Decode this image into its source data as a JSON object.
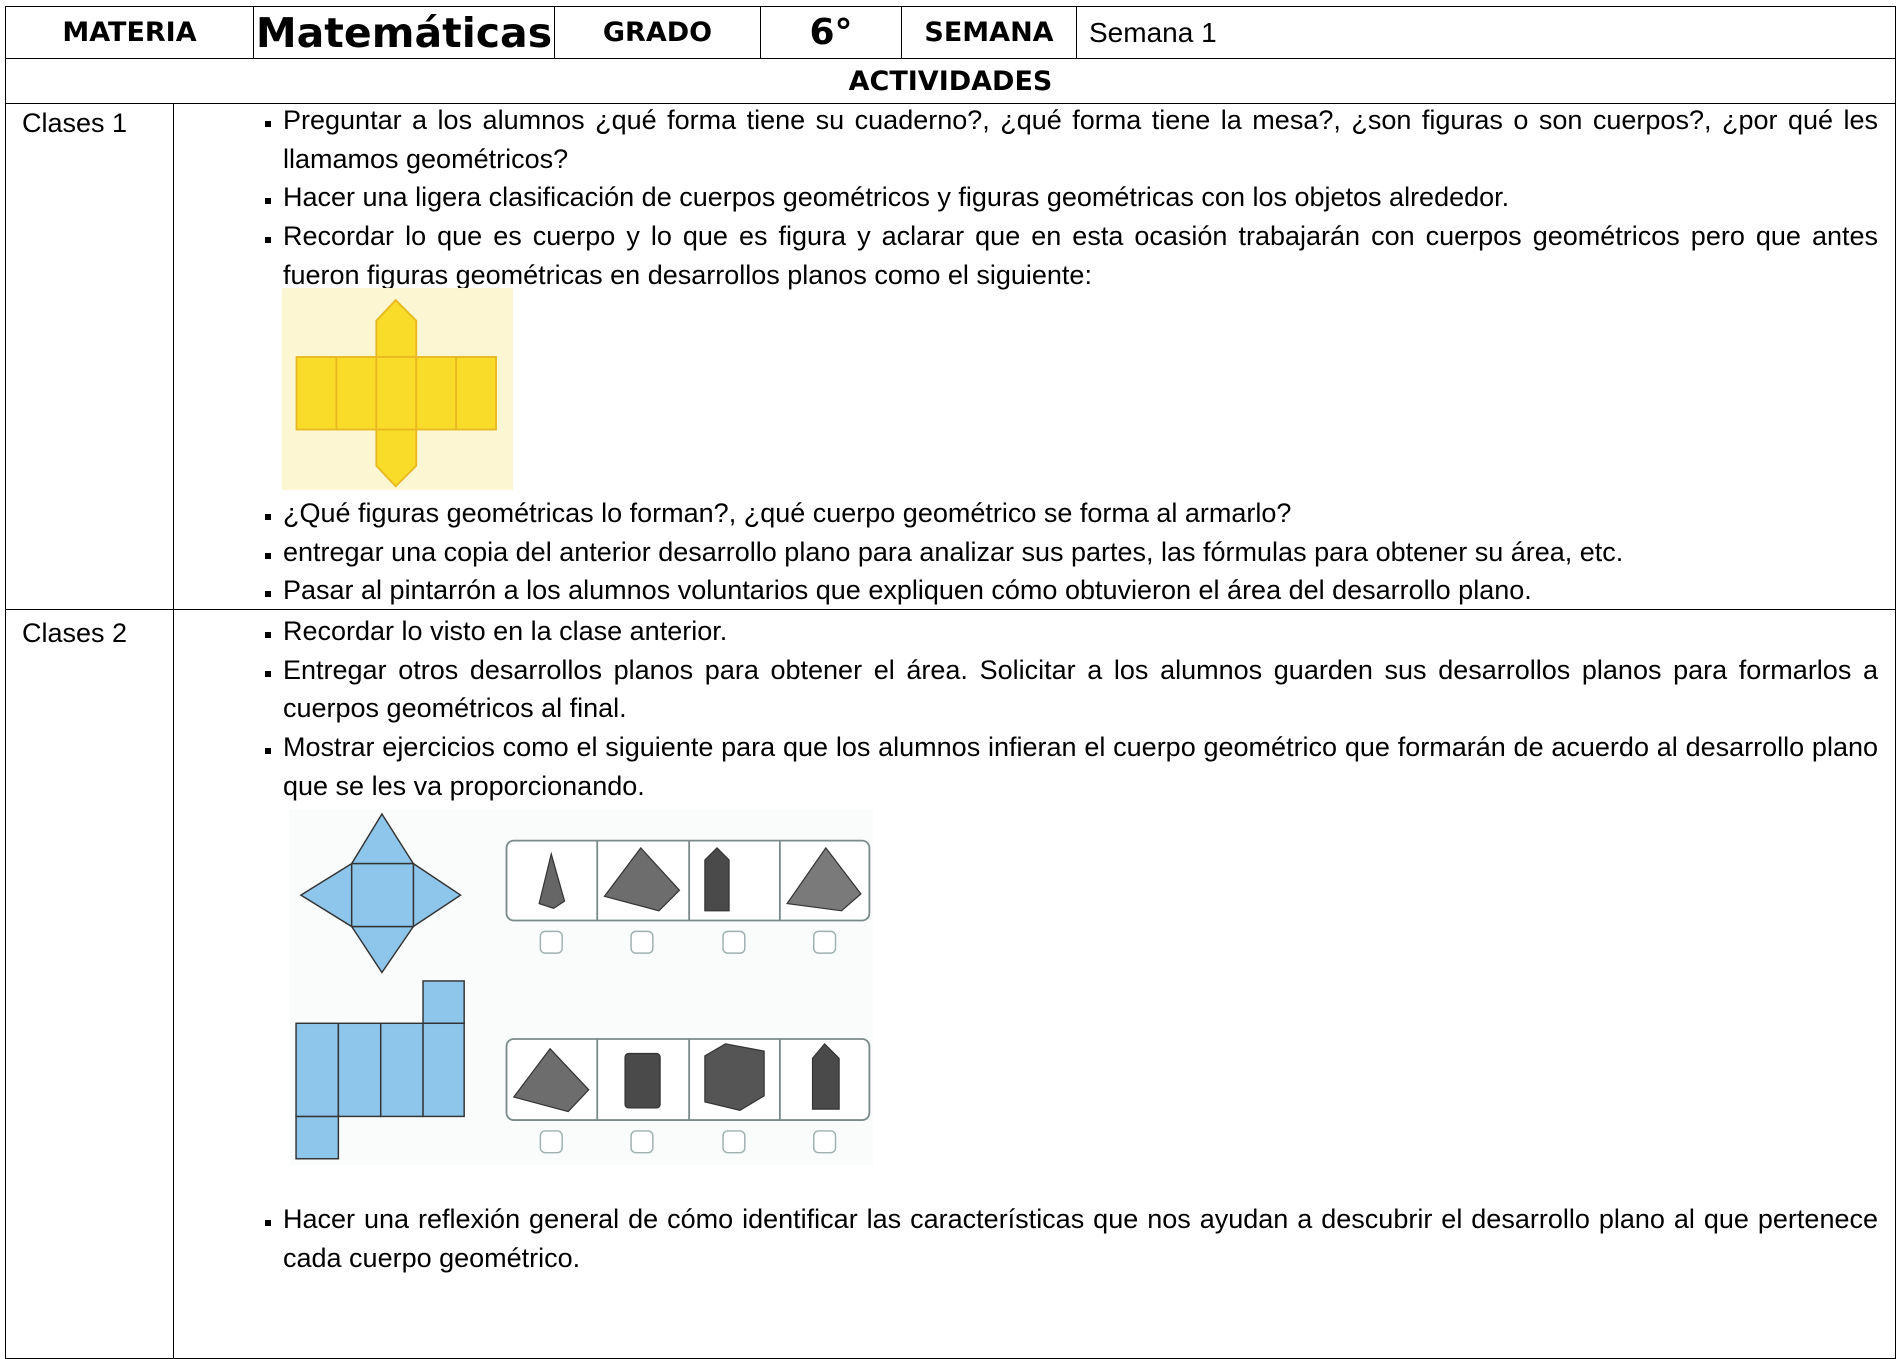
{
  "header": {
    "materia_label": "MATERIA",
    "materia": "Matemáticas",
    "grado_label": "GRADO",
    "grado": "6°",
    "semana_label": "SEMANA",
    "semana": "Semana 1"
  },
  "actividades_title": "ACTIVIDADES",
  "sections": [
    {
      "label": "Clases 1",
      "items_before": [
        "Preguntar a los alumnos ¿qué forma tiene su cuaderno?, ¿qué forma tiene la mesa?, ¿son figuras o son cuerpos?, ¿por qué les llamamos geométricos?",
        "Hacer una ligera clasificación de cuerpos geométricos y figuras geométricas con los objetos alrededor.",
        "Recordar lo que es cuerpo y lo que es figura y aclarar que en esta ocasión trabajarán con cuerpos geométricos pero que antes fueron figuras geométricas en desarrollos planos como el siguiente:"
      ],
      "items_after": [
        "¿Qué figuras geométricas lo forman?, ¿qué cuerpo geométrico se forma al armarlo?",
        "entregar una copia del anterior desarrollo plano para analizar sus partes, las fórmulas para obtener su área, etc.",
        "Pasar al pintarrón a los alumnos voluntarios que expliquen cómo obtuvieron el área del desarrollo plano."
      ]
    },
    {
      "label": "Clases 2",
      "items_before": [
        "Recordar lo visto en la clase anterior.",
        "Entregar otros desarrollos planos para obtener el área. Solicitar a los alumnos guarden sus desarrollos planos para formarlos a cuerpos geométricos al final.",
        "Mostrar ejercicios como el siguiente para que los alumnos infieran el cuerpo geométrico que formarán de acuerdo al desarrollo plano que se les va proporcionando."
      ],
      "items_after": [
        "Hacer una reflexión general de cómo identificar las características que nos ayudan a descubrir el desarrollo plano al que pertenece cada cuerpo geométrico."
      ]
    }
  ]
}
